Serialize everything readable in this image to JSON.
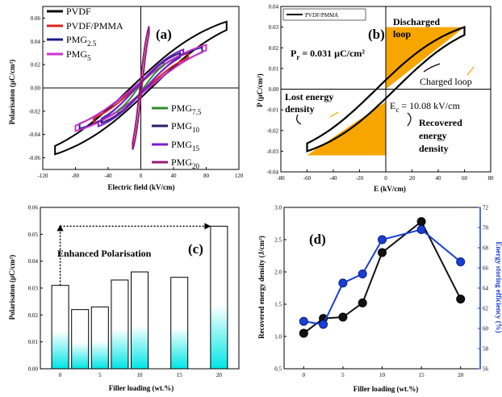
{
  "chart_data": [
    {
      "panel": "(a)",
      "type": "line",
      "xlabel": "Electric field (kV/cm)",
      "ylabel": "Polarisaton (µC/cm²)",
      "xlim": [
        -120,
        120
      ],
      "ylim": [
        -0.07,
        0.07
      ],
      "x_ticks": [
        "-120",
        "-80",
        "-40",
        "0",
        "40",
        "80",
        "120"
      ],
      "y_ticks": [
        "-0.06",
        "-0.04",
        "-0.02",
        "0.00",
        "0.02",
        "0.04",
        "0.06"
      ],
      "series": [
        {
          "name": "PVDF",
          "color": "#000000",
          "emax": 105,
          "pmax": 0.057,
          "pr": 0.008
        },
        {
          "name": "PVDF/PMMA",
          "color": "#e02020",
          "emax": 58,
          "pmax": 0.03,
          "pr": 0.006
        },
        {
          "name": "PMG2.5",
          "color": "#1c1c8c",
          "emax": 75,
          "pmax": 0.035,
          "pr": 0.007
        },
        {
          "name": "PMG5",
          "color": "#cc33cc",
          "emax": 80,
          "pmax": 0.037,
          "pr": 0.007
        },
        {
          "name": "PMG7.5",
          "color": "#2e8b2e",
          "emax": 28,
          "pmax": 0.022,
          "pr": 0.003
        },
        {
          "name": "PMG10",
          "color": "#222266",
          "emax": 48,
          "pmax": 0.03,
          "pr": 0.006
        },
        {
          "name": "PMG15",
          "color": "#7a1fd0",
          "emax": 52,
          "pmax": 0.033,
          "pr": 0.006
        },
        {
          "name": "PMG20",
          "color": "#991a77",
          "emax": 10,
          "pmax": 0.053,
          "pr": 0.003
        }
      ],
      "legend_items": [
        {
          "base": "PVDF",
          "sub": "",
          "color": "#000000"
        },
        {
          "base": "PVDF/PMMA",
          "sub": "",
          "color": "#e02020"
        },
        {
          "base": "PMG",
          "sub": "2.5",
          "color": "#1c1c8c"
        },
        {
          "base": "PMG",
          "sub": "5",
          "color": "#cc33cc"
        },
        {
          "base": "PMG",
          "sub": "7.5",
          "color": "#2e8b2e"
        },
        {
          "base": "PMG",
          "sub": "10",
          "color": "#222266"
        },
        {
          "base": "PMG",
          "sub": "15",
          "color": "#7a1fd0"
        },
        {
          "base": "PMG",
          "sub": "20",
          "color": "#991a77"
        }
      ]
    },
    {
      "panel": "(b)",
      "type": "line",
      "xlabel": "E (kV/cm)",
      "ylabel": "P (µC/cm²)",
      "xlim": [
        -80,
        80
      ],
      "ylim": [
        -0.04,
        0.04
      ],
      "x_ticks": [
        "-80",
        "-60",
        "-40",
        "-20",
        "0",
        "20",
        "40",
        "60",
        "80"
      ],
      "y_ticks": [
        "-0.04",
        "-0.03",
        "-0.02",
        "-0.01",
        "0.00",
        "0.01",
        "0.02",
        "0.03",
        "0.04"
      ],
      "series": [
        {
          "name": "PVDF/PMMA",
          "color": "#000000",
          "emax": 60,
          "pmax": 0.03,
          "pr": 0.006
        }
      ],
      "legend": "PVDF/PMMA",
      "annotations": {
        "pr_base": "P",
        "pr_sub": "r",
        "pr_value": "= 0.031 µC/cm²",
        "ec_base": "E",
        "ec_sub": "c",
        "ec_value": "= 10.08 kV/cm",
        "discharged_1": "Discharged",
        "discharged_2": "loop",
        "charged": "Charged loop",
        "lost_1": "Lost energy",
        "lost_2": "density",
        "recovered_1": "Recovered",
        "recovered_2": "energy",
        "recovered_3": "density"
      },
      "fill_color": "#f7a600"
    },
    {
      "panel": "(c)",
      "type": "bar",
      "xlabel": "Filler loading (wt.%)",
      "ylabel": "Polarisaton (µC/cm²)",
      "x": [
        0,
        2.5,
        5,
        7.5,
        10,
        15,
        20
      ],
      "values": [
        0.031,
        0.022,
        0.023,
        0.033,
        0.036,
        0.034,
        0.053
      ],
      "xlim": [
        -2.5,
        22.5
      ],
      "ylim": [
        0,
        0.06
      ],
      "x_ticks": [
        "0",
        "5",
        "10",
        "15",
        "20"
      ],
      "y_ticks": [
        "0.00",
        "0.01",
        "0.02",
        "0.03",
        "0.04",
        "0.05",
        "0.06"
      ],
      "annotation": "Enhanced Polarisation",
      "bar_gradient": [
        "#ffffff",
        "#00e6e6"
      ]
    },
    {
      "panel": "(d)",
      "type": "line",
      "xlabel": "Filler loading (wt.%)",
      "ylabel": "Recovered energy density  (J/cm³)",
      "y2label": "Energy storing efficiency (%)",
      "x": [
        0,
        2.5,
        5,
        7.5,
        10,
        15,
        20
      ],
      "series": [
        {
          "name": "Recovered energy density",
          "axis": "left",
          "color": "#111111",
          "values": [
            1.05,
            1.28,
            1.3,
            1.52,
            2.3,
            2.78,
            1.58
          ]
        },
        {
          "name": "Energy storing efficiency",
          "axis": "right",
          "color": "#1a3fd6",
          "values": [
            60.7,
            60.4,
            64.5,
            65.4,
            68.8,
            69.8,
            66.6
          ]
        }
      ],
      "xlim": [
        -2.5,
        22.5
      ],
      "ylim": [
        0.5,
        3.0
      ],
      "y2lim": [
        56,
        72
      ],
      "x_ticks": [
        "0",
        "5",
        "10",
        "15",
        "20"
      ],
      "y_ticks": [
        "0.5",
        "1.0",
        "1.5",
        "2.0",
        "2.5",
        "3.0"
      ],
      "y2_ticks": [
        "56",
        "58",
        "60",
        "62",
        "64",
        "66",
        "68",
        "70",
        "72"
      ]
    }
  ]
}
